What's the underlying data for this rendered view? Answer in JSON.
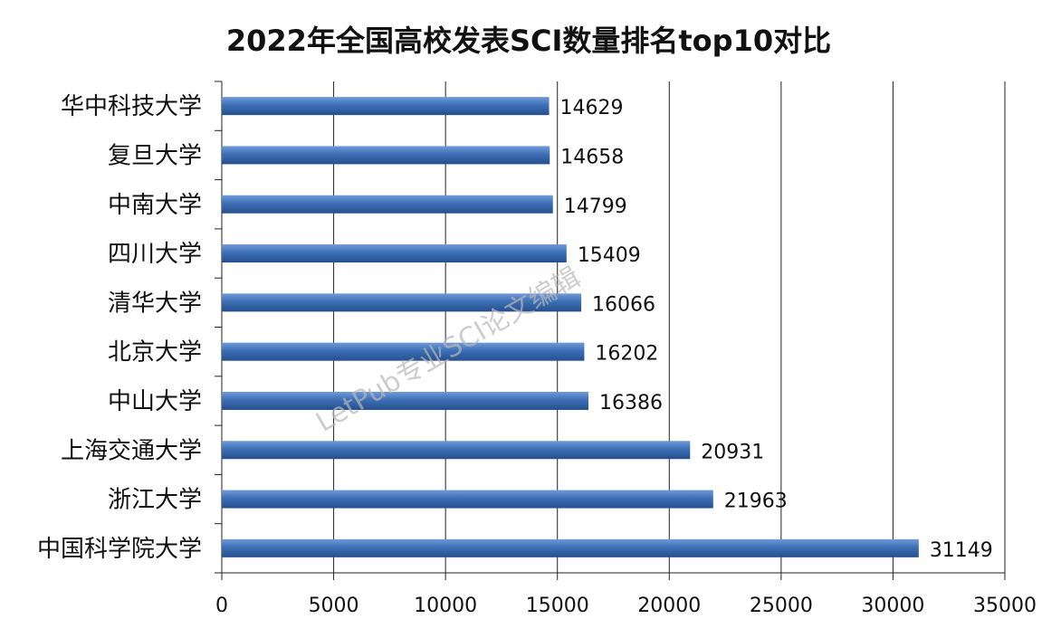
{
  "chart_data": {
    "type": "bar",
    "orientation": "horizontal",
    "title": "2022年全国高校发表SCI数量排名top10对比",
    "categories": [
      "华中科技大学",
      "复旦大学",
      "中南大学",
      "四川大学",
      "清华大学",
      "北京大学",
      "中山大学",
      "上海交通大学",
      "浙江大学",
      "中国科学院大学"
    ],
    "values": [
      14629,
      14658,
      14799,
      15409,
      16066,
      16202,
      16386,
      20931,
      21963,
      31149
    ],
    "xlim": [
      0,
      35000
    ],
    "xticks": [
      0,
      5000,
      10000,
      15000,
      20000,
      25000,
      30000,
      35000
    ],
    "xlabel": "",
    "ylabel": "",
    "grid": "vertical",
    "legend": "none",
    "bar_color": "#3d6fb5",
    "watermark": "LetPub专业SCI论文编辑"
  }
}
